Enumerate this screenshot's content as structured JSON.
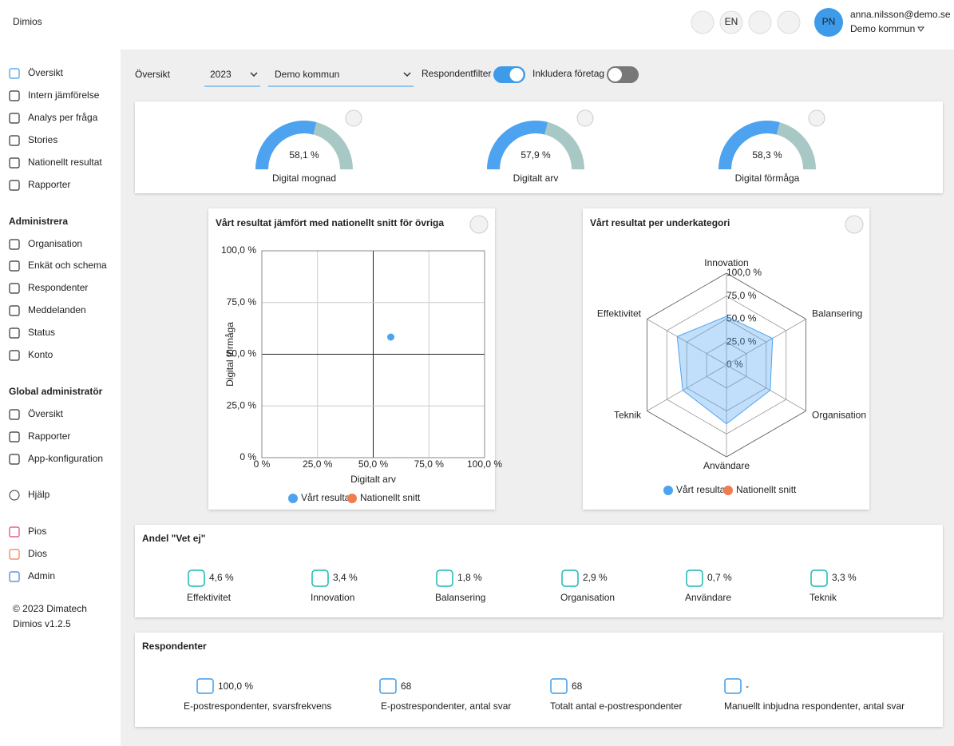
{
  "header": {
    "logo": "Dimios",
    "language": "EN",
    "avatar": "PN",
    "email": "anna.nilsson@demo.se",
    "organisation": "Demo kommun"
  },
  "sidebar": {
    "main": [
      "Översikt",
      "Intern jämförelse",
      "Analys per fråga",
      "Stories",
      "Nationellt resultat",
      "Rapporter"
    ],
    "admin_title": "Administrera",
    "admin": [
      "Organisation",
      "Enkät och schema",
      "Respondenter",
      "Meddelanden",
      "Status",
      "Konto"
    ],
    "global_title": "Global administratör",
    "global": [
      "Översikt",
      "Rapporter",
      "App-konfiguration"
    ],
    "help": "Hjälp",
    "apps": [
      "Pios",
      "Dios",
      "Admin"
    ],
    "copyright": "© 2023 Dimatech",
    "version": "Dimios v1.2.5"
  },
  "toolbar": {
    "title": "Översikt",
    "year": "2023",
    "organisation": "Demo kommun",
    "respondent_filter": "Respondentfilter",
    "include_companies": "Inkludera företag"
  },
  "gauge_range": [
    0,
    100
  ],
  "gauges": [
    {
      "value": 58.1,
      "value_label": "58,1 %",
      "label": "Digital mognad"
    },
    {
      "value": 57.9,
      "value_label": "57,9 %",
      "label": "Digitalt arv"
    },
    {
      "value": 58.3,
      "value_label": "58,3 %",
      "label": "Digital förmåga"
    }
  ],
  "scatter": {
    "type": "scatter",
    "title": "Vårt resultat jämfört med nationellt snitt för övriga",
    "x_label": "Digitalt arv",
    "y_label": "Digital förmåga",
    "xlim": [
      0,
      100
    ],
    "ylim": [
      0,
      100
    ],
    "xticks": [
      {
        "value": 0,
        "label": "0 %"
      },
      {
        "value": 25,
        "label": "25,0 %"
      },
      {
        "value": 50,
        "label": "50,0 %"
      },
      {
        "value": 75,
        "label": "75,0 %"
      },
      {
        "value": 100,
        "label": "100,0 %"
      }
    ],
    "yticks": [
      {
        "value": 0,
        "label": "0 %"
      },
      {
        "value": 25,
        "label": "25,0 %"
      },
      {
        "value": 50,
        "label": "50,0 %"
      },
      {
        "value": 75,
        "label": "75,0 %"
      },
      {
        "value": 100,
        "label": "100,0 %"
      }
    ],
    "grid": true,
    "series": [
      {
        "name": "Vårt resultat",
        "color": "#4da3f0",
        "x": [
          57.9
        ],
        "values": [
          58.3
        ]
      },
      {
        "name": "Nationellt snitt",
        "color": "#ef7d4f",
        "x": [],
        "values": []
      }
    ]
  },
  "radar": {
    "type": "radar",
    "title": "Vårt resultat per underkategori",
    "categories": [
      "Innovation",
      "Balansering",
      "Organisation",
      "Användare",
      "Teknik",
      "Effektivitet"
    ],
    "rlim": [
      0,
      100
    ],
    "rticks": [
      {
        "value": 0,
        "label": "0 %"
      },
      {
        "value": 25,
        "label": "25,0 %"
      },
      {
        "value": 50,
        "label": "50,0 %"
      },
      {
        "value": 75,
        "label": "75,0 %"
      },
      {
        "value": 100,
        "label": "100,0 %"
      }
    ],
    "series": [
      {
        "name": "Vårt resultat",
        "color": "#4da3f0",
        "values": [
          53,
          58,
          55,
          64,
          55,
          62
        ]
      },
      {
        "name": "Nationellt snitt",
        "color": "#ef7d4f",
        "values": []
      }
    ]
  },
  "vet_ej": {
    "title": "Andel \"Vet ej\"",
    "items": [
      {
        "value": "4,6 %",
        "label": "Effektivitet"
      },
      {
        "value": "3,4 %",
        "label": "Innovation"
      },
      {
        "value": "1,8 %",
        "label": "Balansering"
      },
      {
        "value": "2,9 %",
        "label": "Organisation"
      },
      {
        "value": "0,7 %",
        "label": "Användare"
      },
      {
        "value": "3,3 %",
        "label": "Teknik"
      }
    ]
  },
  "respondents": {
    "title": "Respondenter",
    "items": [
      {
        "value": "100,0 %",
        "label": "E-postrespondenter, svarsfrekvens"
      },
      {
        "value": "68",
        "label": "E-postrespondenter, antal svar"
      },
      {
        "value": "68",
        "label": "Totalt antal e-postrespondenter"
      },
      {
        "value": "-",
        "label": "Manuellt inbjudna respondenter, antal svar"
      }
    ]
  }
}
